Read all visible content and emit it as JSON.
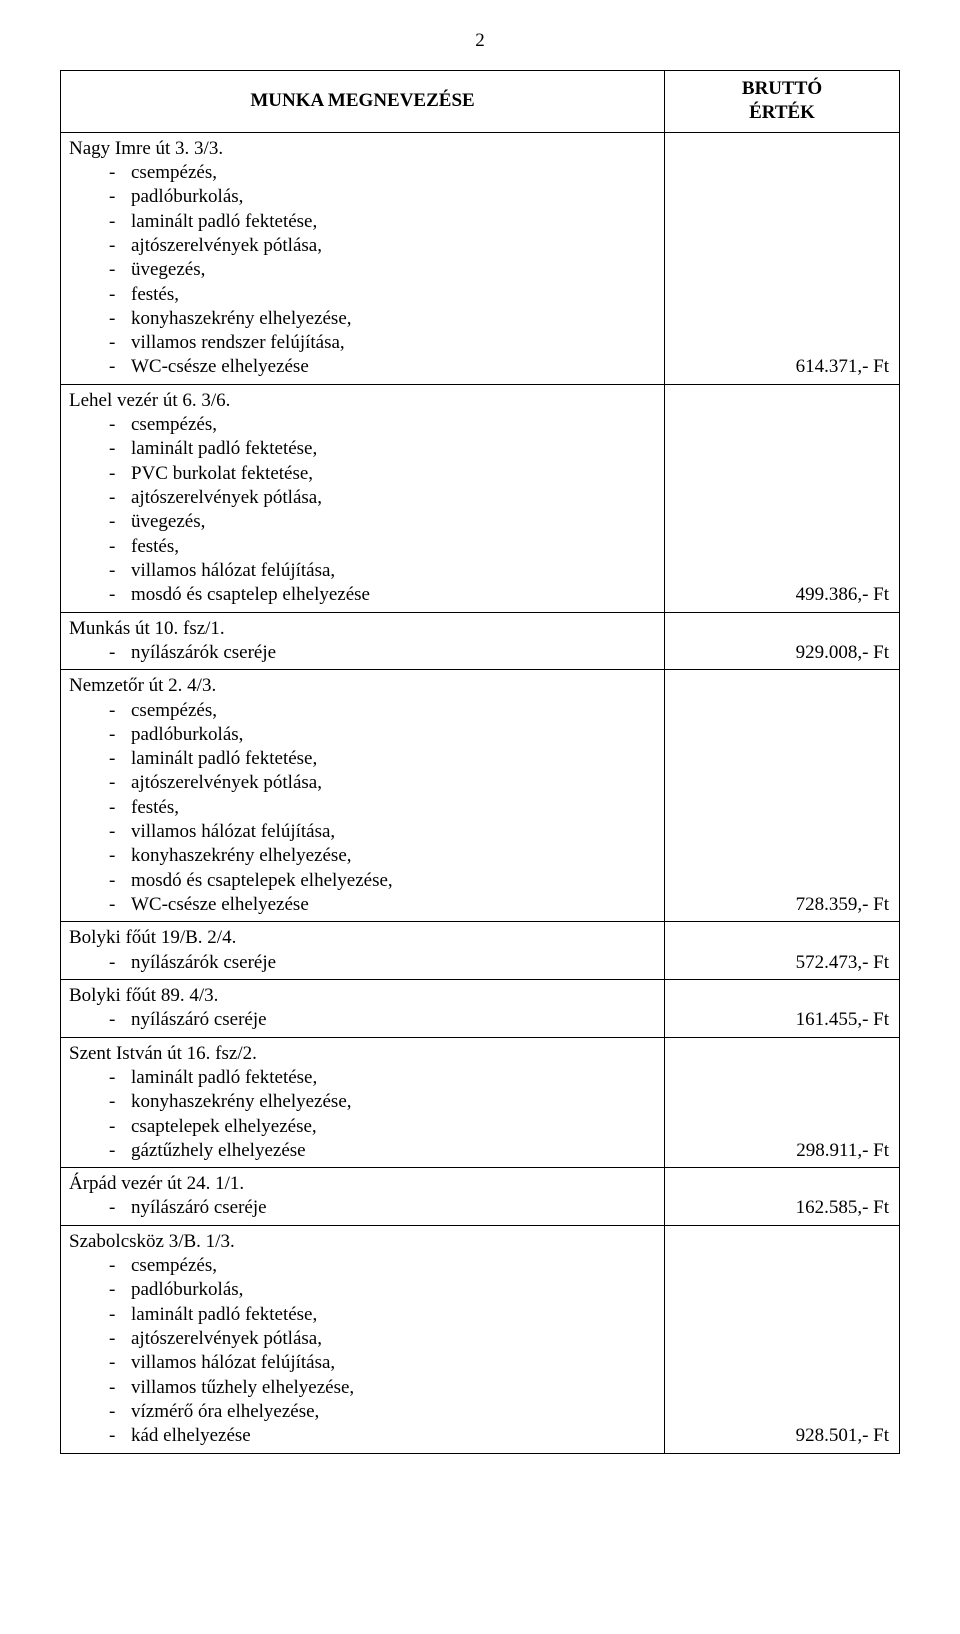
{
  "page_number": "2",
  "header": {
    "left": "MUNKA MEGNEVEZÉSE",
    "right": "BRUTTÓ\nÉRTÉK"
  },
  "rows": [
    {
      "title": "Nagy Imre út 3. 3/3.",
      "items": [
        "csempézés,",
        "padlóburkolás,",
        "laminált padló fektetése,",
        "ajtószerelvények pótlása,",
        "üvegezés,",
        "festés,",
        "konyhaszekrény elhelyezése,",
        "villamos rendszer felújítása,",
        "WC-csésze elhelyezése"
      ],
      "value": "614.371,- Ft"
    },
    {
      "title": "Lehel vezér út 6. 3/6.",
      "items": [
        "csempézés,",
        "laminált padló fektetése,",
        "PVC burkolat fektetése,",
        "ajtószerelvények pótlása,",
        "üvegezés,",
        "festés,",
        "villamos hálózat felújítása,",
        "mosdó és csaptelep elhelyezése"
      ],
      "value": "499.386,- Ft"
    },
    {
      "title": "Munkás út 10. fsz/1.",
      "items": [
        "nyílászárók cseréje"
      ],
      "value": "929.008,- Ft"
    },
    {
      "title": "Nemzetőr út 2. 4/3.",
      "items": [
        "csempézés,",
        "padlóburkolás,",
        "laminált padló fektetése,",
        "ajtószerelvények pótlása,",
        "festés,",
        "villamos hálózat felújítása,",
        "konyhaszekrény elhelyezése,",
        "mosdó és csaptelepek elhelyezése,",
        "WC-csésze elhelyezése"
      ],
      "value": "728.359,- Ft"
    },
    {
      "title": "Bolyki főút 19/B. 2/4.",
      "items": [
        "nyílászárók cseréje"
      ],
      "value": "572.473,- Ft"
    },
    {
      "title": "Bolyki főút 89. 4/3.",
      "items": [
        "nyílászáró cseréje"
      ],
      "value": "161.455,- Ft"
    },
    {
      "title": "Szent István út 16. fsz/2.",
      "items": [
        "laminált padló fektetése,",
        "konyhaszekrény elhelyezése,",
        "csaptelepek elhelyezése,",
        "gáztűzhely elhelyezése"
      ],
      "value": "298.911,- Ft"
    },
    {
      "title": "Árpád vezér út 24. 1/1.",
      "items": [
        "nyílászáró cseréje"
      ],
      "value": "162.585,- Ft"
    },
    {
      "title": "Szabolcsköz 3/B. 1/3.",
      "items": [
        "csempézés,",
        "padlóburkolás,",
        "laminált padló fektetése,",
        "ajtószerelvények pótlása,",
        "villamos hálózat felújítása,",
        "villamos tűzhely elhelyezése,",
        "vízmérő óra elhelyezése,",
        "kád elhelyezése"
      ],
      "value": "928.501,- Ft"
    }
  ]
}
